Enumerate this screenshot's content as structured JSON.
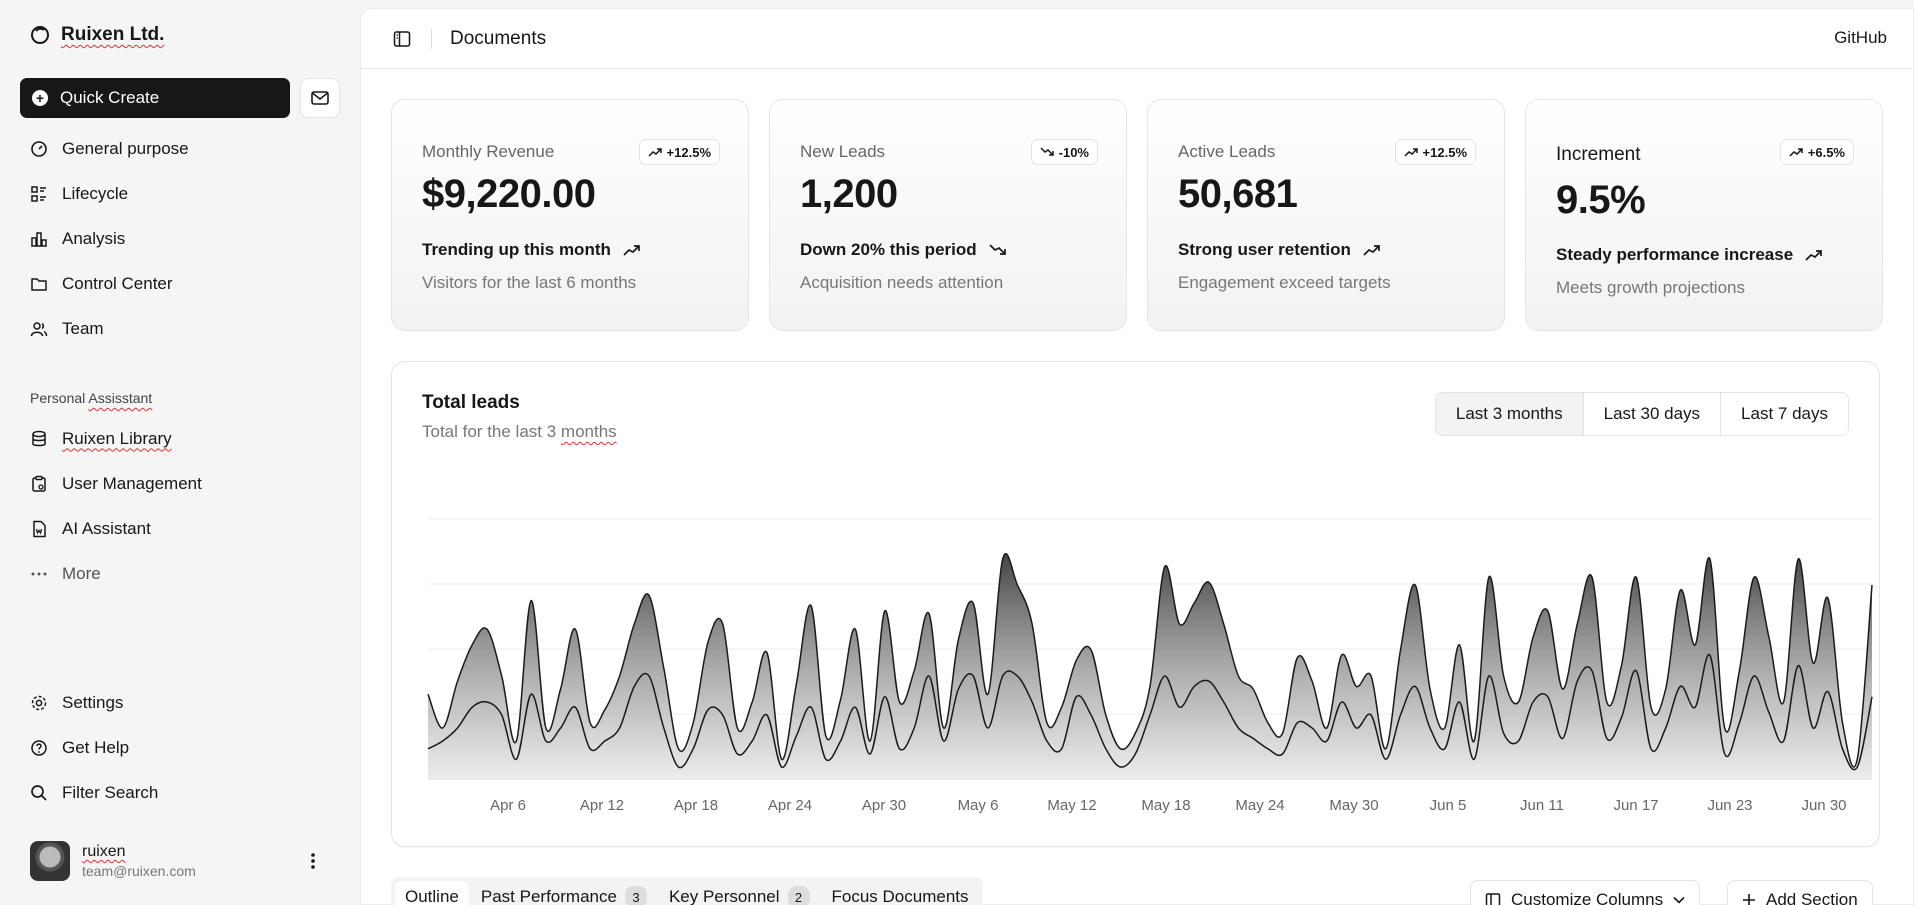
{
  "sidebar": {
    "brand": "Ruixen Ltd.",
    "quick_create": "Quick Create",
    "main_items": [
      {
        "label": "General purpose",
        "icon": "gauge-icon"
      },
      {
        "label": "Lifecycle",
        "icon": "list-details-icon"
      },
      {
        "label": "Analysis",
        "icon": "bar-chart-icon"
      },
      {
        "label": "Control Center",
        "icon": "folder-icon"
      },
      {
        "label": "Team",
        "icon": "users-icon"
      }
    ],
    "section_label": "Personal Assisstant",
    "secondary_items": [
      {
        "label": "Ruixen Library",
        "icon": "database-icon"
      },
      {
        "label": "User Management",
        "icon": "clipboard-icon"
      },
      {
        "label": "AI Assistant",
        "icon": "file-word-icon"
      },
      {
        "label": "More",
        "icon": "dots-icon"
      }
    ],
    "bottom_items": [
      {
        "label": "Settings",
        "icon": "gear-icon"
      },
      {
        "label": "Get Help",
        "icon": "help-circle-icon"
      },
      {
        "label": "Filter Search",
        "icon": "search-icon"
      }
    ],
    "user": {
      "name": "ruixen",
      "email": "team@ruixen.com"
    }
  },
  "header": {
    "title": "Documents",
    "github": "GitHub"
  },
  "cards": [
    {
      "label": "Monthly Revenue",
      "badge": "+12.5%",
      "badge_trend": "up",
      "value": "$9,220.00",
      "trend": "Trending up this month",
      "trend_dir": "up",
      "sub": "Visitors for the last 6 months"
    },
    {
      "label": "New Leads",
      "badge": "-10%",
      "badge_trend": "down",
      "value": "1,200",
      "trend": "Down 20% this period",
      "trend_dir": "down",
      "sub": "Acquisition needs attention"
    },
    {
      "label": "Active Leads",
      "badge": "+12.5%",
      "badge_trend": "up",
      "value": "50,681",
      "trend": "Strong user retention",
      "trend_dir": "up",
      "sub": "Engagement exceed targets"
    },
    {
      "label": "Increment",
      "badge": "+6.5%",
      "badge_trend": "up",
      "value": "9.5%",
      "trend": "Steady performance increase",
      "trend_dir": "up",
      "sub": "Meets growth projections"
    }
  ],
  "chart": {
    "title": "Total leads",
    "subtitle": "Total for the last 3 months",
    "ranges": [
      "Last 3 months",
      "Last 30 days",
      "Last 7 days"
    ],
    "active_range": "Last 3 months"
  },
  "chart_data": {
    "type": "area",
    "title": "Total leads",
    "x_ticks": [
      "Apr 6",
      "Apr 12",
      "Apr 18",
      "Apr 24",
      "Apr 30",
      "May 6",
      "May 12",
      "May 18",
      "May 24",
      "May 30",
      "Jun 5",
      "Jun 11",
      "Jun 17",
      "Jun 23",
      "Jun 30"
    ],
    "x_start": "Apr 1",
    "x_end": "Jun 30",
    "ylim": [
      0,
      100
    ],
    "grid": true,
    "series": [
      {
        "values": [
          33,
          20,
          38,
          52,
          58,
          40,
          15,
          69,
          20,
          35,
          58,
          22,
          27,
          40,
          60,
          71,
          43,
          12,
          22,
          53,
          60,
          20,
          30,
          49,
          8,
          37,
          67,
          17,
          31,
          58,
          15,
          65,
          30,
          42,
          64,
          20,
          54,
          68,
          33,
          85,
          75,
          60,
          22,
          28,
          46,
          50,
          25,
          12,
          18,
          36,
          82,
          60,
          68,
          76,
          60,
          40,
          35,
          22,
          18,
          47,
          38,
          20,
          48,
          36,
          40,
          12,
          50,
          75,
          35,
          20,
          52,
          15,
          78,
          40,
          30,
          55,
          65,
          35,
          60,
          78,
          30,
          44,
          78,
          28,
          35,
          73,
          52,
          85,
          20,
          42,
          78,
          55,
          30,
          85,
          45,
          70,
          22,
          8,
          75
        ]
      },
      {
        "values": [
          12,
          15,
          20,
          28,
          30,
          25,
          8,
          33,
          15,
          20,
          28,
          12,
          15,
          20,
          36,
          40,
          20,
          5,
          12,
          27,
          25,
          10,
          15,
          25,
          5,
          17,
          28,
          8,
          15,
          28,
          10,
          32,
          12,
          20,
          40,
          15,
          35,
          40,
          20,
          40,
          40,
          30,
          15,
          12,
          32,
          25,
          12,
          5,
          10,
          25,
          40,
          28,
          36,
          38,
          30,
          20,
          16,
          12,
          10,
          22,
          20,
          15,
          30,
          20,
          25,
          8,
          25,
          36,
          20,
          12,
          30,
          8,
          40,
          18,
          15,
          30,
          32,
          16,
          38,
          42,
          16,
          24,
          42,
          12,
          20,
          36,
          28,
          48,
          10,
          22,
          40,
          26,
          15,
          44,
          20,
          34,
          12,
          5,
          32
        ]
      }
    ]
  },
  "tabs": [
    {
      "label": "Outline",
      "count": ""
    },
    {
      "label": "Past Performance",
      "count": "3"
    },
    {
      "label": "Key Personnel",
      "count": "2"
    },
    {
      "label": "Focus Documents",
      "count": ""
    }
  ],
  "actions": {
    "customize": "Customize Columns",
    "add_section": "Add Section"
  }
}
